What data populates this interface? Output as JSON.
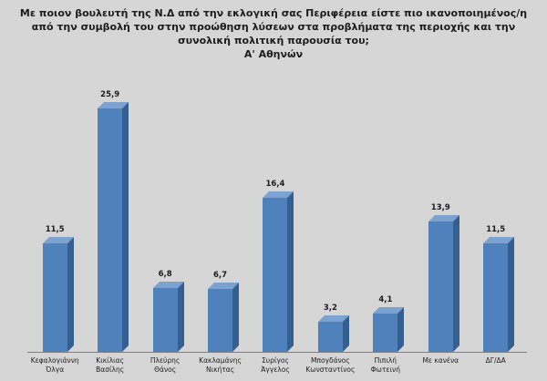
{
  "chart_data": {
    "type": "bar",
    "title": "Με ποιον βουλευτή της Ν.Δ από την εκλογική σας Περιφέρεια είστε πιο ικανοποιημένος/η από την συμβολή του στην προώθηση λύσεων στα προβλήματα της περιοχής και την συνολική πολιτική παρουσία του;",
    "subtitle": "Α' Αθηνών",
    "categories": [
      "Κεφαλογιάννη Όλγα",
      "Κικίλιας Βασίλης",
      "Πλεύρης Θάνος",
      "Κακλαμάνης Νικήτας",
      "Συρίγος Άγγελος",
      "Μπογδάνος Κωνσταντίνος",
      "Πιπιλή Φωτεινή",
      "Με κανένα",
      "ΔΓ/ΔΑ"
    ],
    "values": [
      11.5,
      25.9,
      6.8,
      6.7,
      16.4,
      3.2,
      4.1,
      13.9,
      11.5
    ],
    "value_labels": [
      "11,5",
      "25,9",
      "6,8",
      "6,7",
      "16,4",
      "3,2",
      "4,1",
      "13,9",
      "11,5"
    ],
    "ylim": [
      0,
      26
    ],
    "xlabel": "",
    "ylabel": "",
    "grid": false,
    "legend": "none",
    "bar_color": "#4f81bd",
    "bar_top_color": "#7ba2d0",
    "bar_side_color": "#365f91",
    "background_color": "#d6d6d6",
    "value_labels_shown": true
  }
}
